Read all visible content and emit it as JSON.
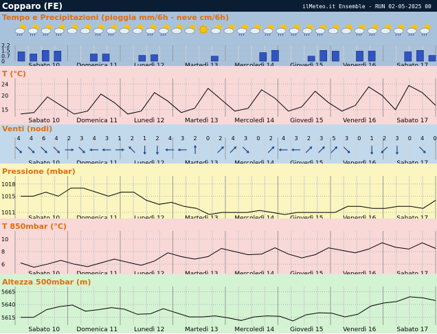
{
  "header": {
    "location": "Copparo (FE)",
    "run_info": "ilMeteo.it Ensemble - RUN 02-05-2025 00"
  },
  "colors": {
    "header_bg": "#0a1d33",
    "precip_bg": "#a9c2dc",
    "temp_bg": "#f9d8d8",
    "wind_bg": "#c2d9ec",
    "pressure_bg": "#fbf5bf",
    "t850_bg": "#f9d8d8",
    "z500_bg": "#d3f3d3",
    "bar_fill": "#3054c4",
    "title_color": "#e36c0a"
  },
  "days": [
    "Sabato 10",
    "Domenica 11",
    "Lunedì 12",
    "Martedì 13",
    "Mercoledì 14",
    "Giovedì 15",
    "Venerdì 16",
    "Sabato 17"
  ],
  "chart_data": [
    {
      "type": "bar",
      "panel": "precipitation",
      "title": "Tempo e Precipitazioni (pioggia mm/6h - neve cm/6h)",
      "yticks": [
        "2.2",
        "1.5",
        "0.7",
        "0"
      ],
      "ylim": [
        0,
        2.2
      ],
      "weather_icons": [
        "partly-cloudy-rain",
        "partly-cloudy-rain",
        "partly-cloudy-rain",
        "partly-cloudy-rain",
        "partly-cloudy",
        "partly-cloudy",
        "partly-cloudy-rain",
        "partly-cloudy-rain",
        "partly-cloudy",
        "partly-cloudy",
        "partly-cloudy-rain",
        "partly-cloudy-rain",
        "partly-cloudy",
        "partly-cloudy",
        "sunny",
        "partly-cloudy",
        "partly-cloudy",
        "partly-cloudy-rain",
        "partly-cloudy",
        "partly-cloudy-rain",
        "partly-cloudy-rain",
        "partly-cloudy-rain",
        "partly-cloudy-rain",
        "partly-cloudy-rain",
        "partly-cloudy",
        "partly-cloudy",
        "partly-cloudy-rain",
        "partly-cloudy-rain",
        "partly-cloudy",
        "partly-cloudy-rain",
        "partly-cloudy-rain",
        "partly-cloudy-rain"
      ],
      "values": [
        1.3,
        1.0,
        1.5,
        1.4,
        0,
        0,
        1.0,
        1.0,
        0,
        0,
        0.8,
        0.9,
        0,
        0,
        0,
        0,
        0.7,
        0,
        0,
        0,
        1.2,
        1.5,
        0,
        0,
        0.7,
        1.5,
        1.4,
        0,
        1.4,
        1.4,
        0,
        0,
        1.3,
        1.5,
        0.8
      ]
    },
    {
      "type": "line",
      "panel": "temperature",
      "title": "T (°C)",
      "yticks": [
        24,
        20,
        15
      ],
      "ylim": [
        12.5,
        26
      ],
      "values": [
        13.5,
        14.0,
        19.5,
        16.5,
        13.5,
        14.5,
        20.5,
        17.5,
        13.5,
        14.5,
        21.0,
        18.0,
        14.0,
        15.5,
        22.5,
        18.5,
        14.5,
        15.5,
        22.0,
        19.0,
        14.5,
        16.0,
        21.5,
        17.5,
        14.5,
        16.5,
        23.0,
        20.0,
        15.0,
        23.5,
        21.0,
        16.5
      ]
    },
    {
      "type": "wind",
      "panel": "wind",
      "title": "Venti (nodi)",
      "speeds": [
        4,
        4,
        6,
        4,
        2,
        3,
        4,
        3,
        1,
        2,
        1,
        2,
        4,
        3,
        2,
        0,
        2,
        4,
        3,
        0,
        2,
        4,
        3,
        2,
        3,
        5,
        3,
        0,
        1,
        2,
        3,
        0,
        4,
        0
      ],
      "directions_deg": [
        135,
        135,
        135,
        135,
        90,
        135,
        270,
        270,
        90,
        315,
        180,
        180,
        270,
        270,
        0,
        0,
        45,
        45,
        135,
        0,
        45,
        270,
        270,
        45,
        45,
        45,
        135,
        0,
        180,
        225,
        180,
        0,
        135,
        0
      ]
    },
    {
      "type": "line",
      "panel": "pressure",
      "title": "Pressione (mbar)",
      "yticks": [
        1018,
        1015,
        1011
      ],
      "ylim": [
        1009.5,
        1020
      ],
      "values": [
        1015.0,
        1015.0,
        1016.0,
        1015.0,
        1017.0,
        1017.0,
        1016.0,
        1015.0,
        1016.0,
        1016.0,
        1014.0,
        1013.0,
        1013.5,
        1012.5,
        1012.0,
        1010.5,
        1011.0,
        1011.0,
        1011.0,
        1011.5,
        1011.0,
        1010.5,
        1011.0,
        1011.0,
        1011.0,
        1011.0,
        1012.5,
        1012.5,
        1012.0,
        1012.0,
        1012.5,
        1012.5,
        1012.0,
        1014.0
      ]
    },
    {
      "type": "line",
      "panel": "t850",
      "title": "T 850mbar (°C)",
      "yticks": [
        10,
        8,
        6
      ],
      "ylim": [
        4.5,
        11.3
      ],
      "values": [
        6.2,
        5.5,
        6.0,
        6.6,
        6.0,
        5.6,
        6.2,
        6.8,
        6.3,
        5.8,
        6.5,
        7.8,
        7.2,
        6.8,
        7.2,
        8.5,
        8.0,
        7.5,
        7.6,
        8.6,
        7.6,
        7.0,
        7.5,
        8.6,
        8.2,
        7.8,
        8.4,
        9.4,
        8.7,
        8.4,
        9.4,
        8.5
      ]
    },
    {
      "type": "line",
      "panel": "z500",
      "title": "Altezza 500mbar (m)",
      "yticks": [
        5665,
        5640,
        5615
      ],
      "ylim": [
        5600,
        5675
      ],
      "values": [
        5615,
        5615,
        5630,
        5636,
        5639,
        5627,
        5630,
        5634,
        5631,
        5621,
        5622,
        5632,
        5624,
        5616,
        5616,
        5618,
        5614,
        5609,
        5616,
        5618,
        5617,
        5608,
        5620,
        5624,
        5623,
        5616,
        5621,
        5637,
        5643,
        5646,
        5655,
        5653,
        5648
      ]
    }
  ]
}
